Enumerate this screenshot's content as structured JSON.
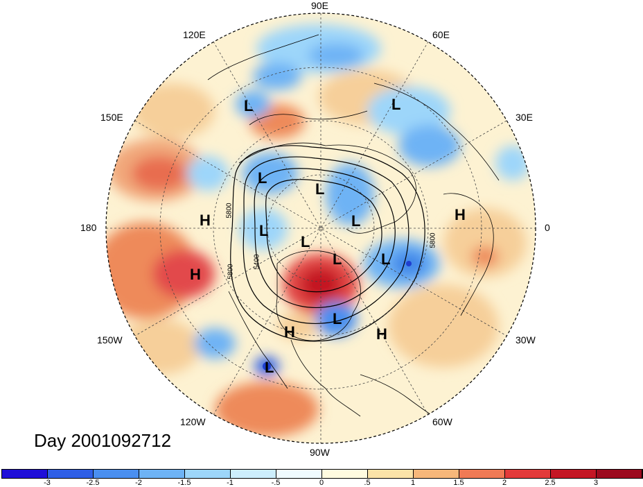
{
  "title": "Day 2001092712",
  "longitude_labels": {
    "90E": "90E",
    "60E": "60E",
    "30E": "30E",
    "0": "0",
    "30W": "30W",
    "60W": "60W",
    "90W": "90W",
    "120W": "120W",
    "150W": "150W",
    "180": "180",
    "150E": "150E",
    "120E": "120E"
  },
  "pressure_systems": [
    {
      "label": "L"
    },
    {
      "label": "L"
    },
    {
      "label": "L"
    },
    {
      "label": "L"
    },
    {
      "label": "L"
    },
    {
      "label": "L"
    },
    {
      "label": "L"
    },
    {
      "label": "L"
    },
    {
      "label": "L"
    },
    {
      "label": "L"
    },
    {
      "label": "L"
    },
    {
      "label": "H"
    },
    {
      "label": "H"
    },
    {
      "label": "H"
    },
    {
      "label": "H"
    },
    {
      "label": "H"
    }
  ],
  "contour_labels": [
    "5800",
    "5400",
    "5800",
    "5800"
  ],
  "colorbar": {
    "ticks": [
      "-3",
      "-2.5",
      "-2",
      "-1.5",
      "-1",
      "-.5",
      "0",
      ".5",
      "1",
      "1.5",
      "2",
      "2.5",
      "3"
    ],
    "colors": [
      "#1f0fd8",
      "#2f5fe6",
      "#4a8ff0",
      "#6eb3f5",
      "#9dd6fa",
      "#cdeefd",
      "#f0fbff",
      "#fffbe0",
      "#fbe3a8",
      "#f7b77a",
      "#f07a55",
      "#e33a3a",
      "#c41624",
      "#9c0a1e"
    ]
  },
  "map_colors": {
    "background": "#fdf2d2",
    "warm_light": "#f6cf9a",
    "warm": "#ee8a5a",
    "warm_strong": "#d8303a",
    "cool_light": "#c9e8fb",
    "cool": "#7fc0f3",
    "cool_strong": "#3f86e8",
    "cool_deep": "#1e3fd0"
  }
}
